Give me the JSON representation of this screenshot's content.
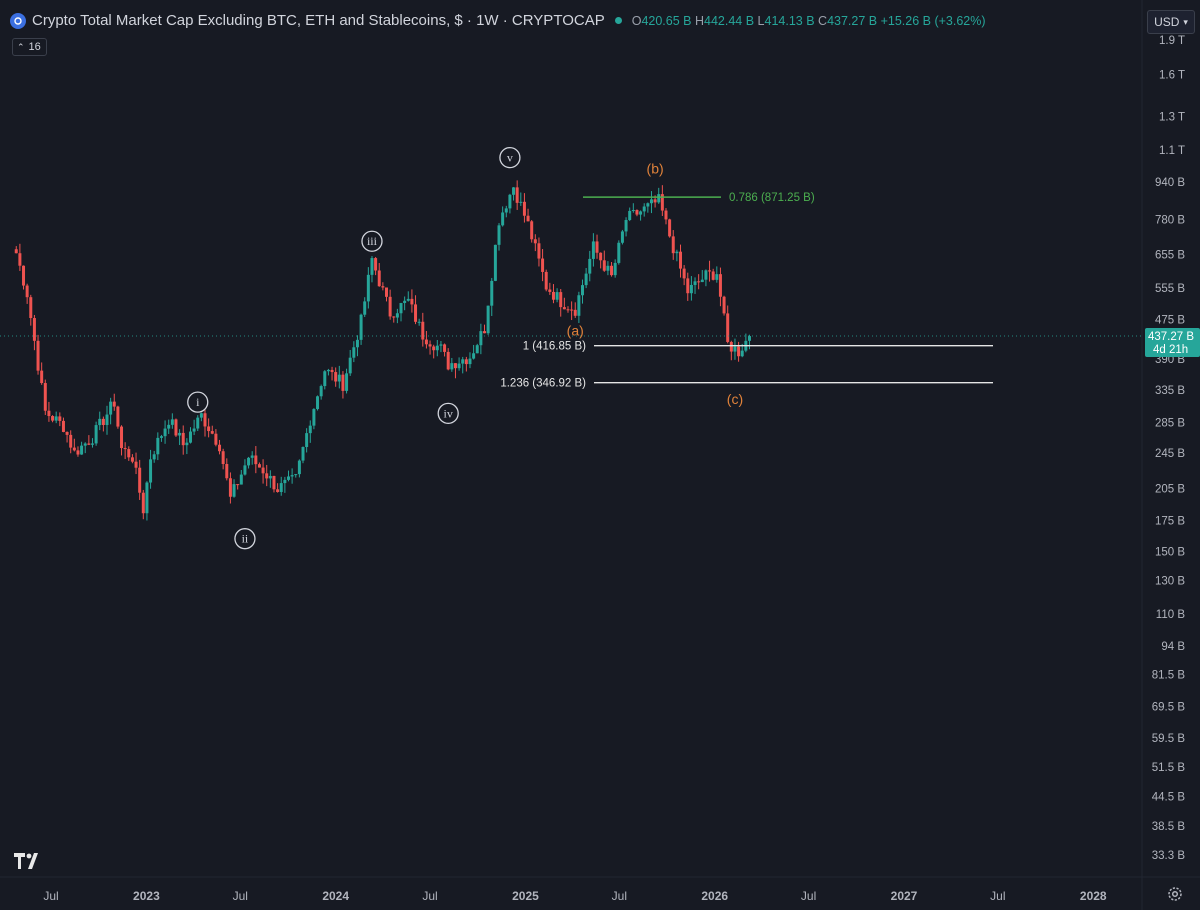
{
  "header": {
    "title": "Crypto Total Market Cap Excluding BTC, ETH and Stablecoins, $ · 1W · CRYPTOCAP",
    "ohlc": {
      "o_label": "O",
      "o_value": "420.65 B",
      "h_label": "H",
      "h_value": "442.44 B",
      "l_label": "L",
      "l_value": "414.13 B",
      "c_label": "C",
      "c_value": "437.27 B",
      "change": "+15.26 B (+3.62%)"
    },
    "indicator_count": "16",
    "currency": "USD"
  },
  "colors": {
    "background": "#171a23",
    "up": "#26a69a",
    "down": "#ef5350",
    "wave_white": "#d1d4dc",
    "wave_orange": "#e0823a",
    "fib_green": "#4caf50",
    "price_tag": "#26a69a"
  },
  "chart_data": {
    "type": "candlestick",
    "timeframe": "1W",
    "y_scale": "log",
    "y_ticks": [
      "1.9 T",
      "1.6 T",
      "1.3 T",
      "1.1 T",
      "940 B",
      "780 B",
      "655 B",
      "555 B",
      "475 B",
      "390 B",
      "335 B",
      "285 B",
      "245 B",
      "205 B",
      "175 B",
      "150 B",
      "130 B",
      "110 B",
      "94 B",
      "81.5 B",
      "69.5 B",
      "59.5 B",
      "51.5 B",
      "44.5 B",
      "38.5 B",
      "33.3 B"
    ],
    "y_tick_values": [
      1900,
      1600,
      1300,
      1100,
      940,
      780,
      655,
      555,
      475,
      390,
      335,
      285,
      245,
      205,
      175,
      150,
      130,
      110,
      94,
      81.5,
      69.5,
      59.5,
      51.5,
      44.5,
      38.5,
      33.3
    ],
    "x_ticks": [
      {
        "label": "Jul",
        "date": "2022-07-01",
        "bold": false
      },
      {
        "label": "2023",
        "date": "2023-01-01",
        "bold": true
      },
      {
        "label": "Jul",
        "date": "2023-07-01",
        "bold": false
      },
      {
        "label": "2024",
        "date": "2024-01-01",
        "bold": true
      },
      {
        "label": "Jul",
        "date": "2024-07-01",
        "bold": false
      },
      {
        "label": "2025",
        "date": "2025-01-01",
        "bold": true
      },
      {
        "label": "Jul",
        "date": "2025-07-01",
        "bold": false
      },
      {
        "label": "2026",
        "date": "2026-01-01",
        "bold": true
      },
      {
        "label": "Jul",
        "date": "2026-07-01",
        "bold": false
      },
      {
        "label": "2027",
        "date": "2027-01-01",
        "bold": true
      },
      {
        "label": "Jul",
        "date": "2027-07-01",
        "bold": false
      },
      {
        "label": "2028",
        "date": "2028-01-01",
        "bold": true
      }
    ],
    "price_path": [
      {
        "date": "2022-04-25",
        "value": 660
      },
      {
        "date": "2022-05-16",
        "value": 540
      },
      {
        "date": "2022-06-20",
        "value": 300
      },
      {
        "date": "2022-07-25",
        "value": 280
      },
      {
        "date": "2022-08-15",
        "value": 245
      },
      {
        "date": "2022-09-19",
        "value": 265
      },
      {
        "date": "2022-10-31",
        "value": 315
      },
      {
        "date": "2022-11-14",
        "value": 250
      },
      {
        "date": "2022-12-05",
        "value": 240
      },
      {
        "date": "2022-12-26",
        "value": 185
      },
      {
        "date": "2023-01-09",
        "value": 240
      },
      {
        "date": "2023-02-13",
        "value": 290
      },
      {
        "date": "2023-03-13",
        "value": 255
      },
      {
        "date": "2023-04-17",
        "value": 295
      },
      {
        "date": "2023-05-22",
        "value": 255
      },
      {
        "date": "2023-06-12",
        "value": 195
      },
      {
        "date": "2023-07-17",
        "value": 240
      },
      {
        "date": "2023-08-14",
        "value": 225
      },
      {
        "date": "2023-09-11",
        "value": 205
      },
      {
        "date": "2023-10-16",
        "value": 215
      },
      {
        "date": "2023-11-13",
        "value": 290
      },
      {
        "date": "2023-12-11",
        "value": 370
      },
      {
        "date": "2024-01-15",
        "value": 345
      },
      {
        "date": "2024-02-19",
        "value": 470
      },
      {
        "date": "2024-03-11",
        "value": 640
      },
      {
        "date": "2024-04-15",
        "value": 490
      },
      {
        "date": "2024-05-20",
        "value": 520
      },
      {
        "date": "2024-06-17",
        "value": 440
      },
      {
        "date": "2024-07-22",
        "value": 410
      },
      {
        "date": "2024-08-05",
        "value": 380
      },
      {
        "date": "2024-09-16",
        "value": 395
      },
      {
        "date": "2024-10-14",
        "value": 455
      },
      {
        "date": "2024-11-11",
        "value": 780
      },
      {
        "date": "2024-12-09",
        "value": 920
      },
      {
        "date": "2025-01-06",
        "value": 760
      },
      {
        "date": "2025-02-10",
        "value": 560
      },
      {
        "date": "2025-03-10",
        "value": 520
      },
      {
        "date": "2025-04-07",
        "value": 500
      },
      {
        "date": "2025-05-12",
        "value": 680
      },
      {
        "date": "2025-06-16",
        "value": 585
      },
      {
        "date": "2025-07-14",
        "value": 780
      },
      {
        "date": "2025-08-18",
        "value": 820
      },
      {
        "date": "2025-09-15",
        "value": 855
      },
      {
        "date": "2025-10-13",
        "value": 680
      },
      {
        "date": "2025-11-10",
        "value": 545
      },
      {
        "date": "2025-12-15",
        "value": 590
      },
      {
        "date": "2026-01-05",
        "value": 600
      },
      {
        "date": "2026-01-26",
        "value": 420
      },
      {
        "date": "2026-02-16",
        "value": 405
      },
      {
        "date": "2026-03-09",
        "value": 437.27
      }
    ],
    "current_price": "437.27 B",
    "countdown": "4d 21h",
    "horizontal_levels": [
      {
        "label": "0.786 (871.25 B)",
        "value": 871.25,
        "color": "green"
      },
      {
        "label": "1 (416.85 B)",
        "value": 416.85,
        "color": "white"
      },
      {
        "label": "1.236 (346.92 B)",
        "value": 346.92,
        "color": "white"
      }
    ],
    "wave_labels": [
      {
        "text": "i",
        "date": "2023-04-10",
        "value": 315,
        "circled": true,
        "color": "white"
      },
      {
        "text": "ii",
        "date": "2023-07-10",
        "value": 160,
        "circled": true,
        "color": "white"
      },
      {
        "text": "iii",
        "date": "2024-03-11",
        "value": 700,
        "circled": true,
        "color": "white"
      },
      {
        "text": "iv",
        "date": "2024-08-05",
        "value": 298,
        "circled": true,
        "color": "white"
      },
      {
        "text": "v",
        "date": "2024-12-02",
        "value": 1060,
        "circled": true,
        "color": "white"
      },
      {
        "text": "(a)",
        "date": "2025-04-07",
        "value": 450,
        "circled": false,
        "color": "orange"
      },
      {
        "text": "(b)",
        "date": "2025-09-08",
        "value": 1005,
        "circled": false,
        "color": "orange"
      },
      {
        "text": "(c)",
        "date": "2026-02-09",
        "value": 320,
        "circled": false,
        "color": "orange"
      }
    ]
  }
}
